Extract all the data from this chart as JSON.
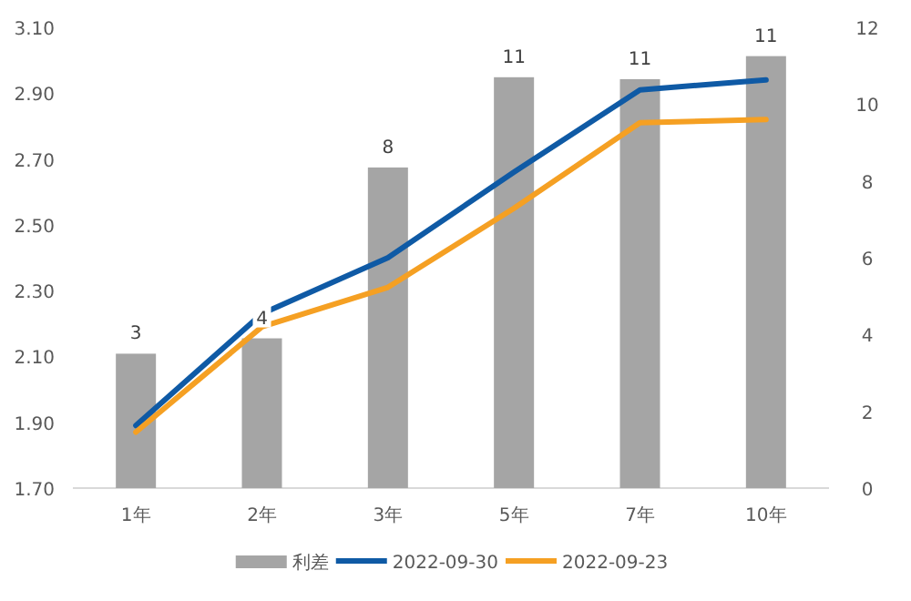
{
  "chart_data": {
    "type": "line",
    "categories": [
      "1年",
      "2年",
      "3年",
      "5年",
      "7年",
      "10年"
    ],
    "series": [
      {
        "name": "利差",
        "type": "bar",
        "axis": "y2",
        "color": "#a5a5a5",
        "values": [
          3.5,
          3.9,
          8.35,
          10.7,
          10.65,
          11.25
        ],
        "value_labels": [
          "3",
          "4",
          "8",
          "11",
          "11",
          "11"
        ]
      },
      {
        "name": "2022-09-30",
        "color": "#0f5aa5",
        "values": [
          1.89,
          2.23,
          2.4,
          2.66,
          2.91,
          2.94
        ]
      },
      {
        "name": "2022-09-23",
        "color": "#f5a023",
        "values": [
          1.87,
          2.19,
          2.31,
          2.55,
          2.81,
          2.82
        ]
      }
    ],
    "ylim": [
      1.7,
      3.1
    ],
    "yticks": [
      {
        "value": 1.7,
        "label": "1.70"
      },
      {
        "value": 1.9,
        "label": "1.90"
      },
      {
        "value": 2.1,
        "label": "2.10"
      },
      {
        "value": 2.3,
        "label": "2.30"
      },
      {
        "value": 2.5,
        "label": "2.50"
      },
      {
        "value": 2.7,
        "label": "2.70"
      },
      {
        "value": 2.9,
        "label": "2.90"
      },
      {
        "value": 3.1,
        "label": "3.10"
      }
    ],
    "y2lim": [
      0,
      12
    ],
    "y2ticks": [
      0,
      2,
      4,
      6,
      8,
      10,
      12
    ],
    "legend": "bottom",
    "marker": "none",
    "line_style": "solid"
  }
}
